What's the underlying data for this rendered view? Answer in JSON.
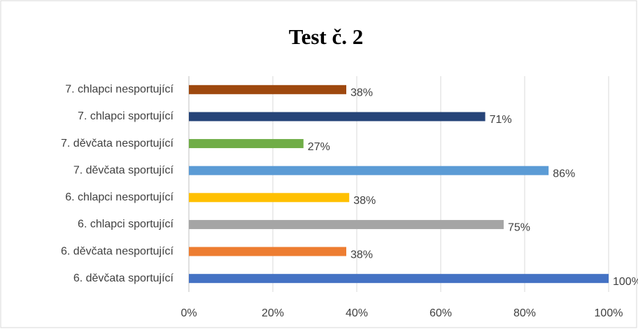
{
  "chart_data": {
    "type": "bar",
    "orientation": "horizontal",
    "title": "Test č. 2",
    "categories": [
      "6. děvčata sportující",
      "6. děvčata nesportující",
      "6. chlapci sportující",
      "6. chlapci nesportující",
      "7. děvčata sportující",
      "7. děvčata nesportující",
      "7. chlapci sportující",
      "7. chlapci nesportující"
    ],
    "values": [
      100,
      37.5,
      75,
      38.2,
      85.7,
      27.3,
      70.6,
      37.5
    ],
    "value_labels": [
      "100%",
      "38%",
      "75%",
      "38%",
      "86%",
      "27%",
      "71%",
      "38%"
    ],
    "colors": [
      "#4472c4",
      "#ed7d31",
      "#a5a5a5",
      "#ffc000",
      "#5b9bd5",
      "#70ad47",
      "#264478",
      "#9e480e"
    ],
    "xlim": [
      0,
      100
    ],
    "xticks": [
      {
        "value": 0,
        "label": "0%"
      },
      {
        "value": 20,
        "label": "20%"
      },
      {
        "value": 40,
        "label": "40%"
      },
      {
        "value": 60,
        "label": "60%"
      },
      {
        "value": 80,
        "label": "80%"
      },
      {
        "value": 100,
        "label": "100%"
      }
    ],
    "grid": true
  }
}
